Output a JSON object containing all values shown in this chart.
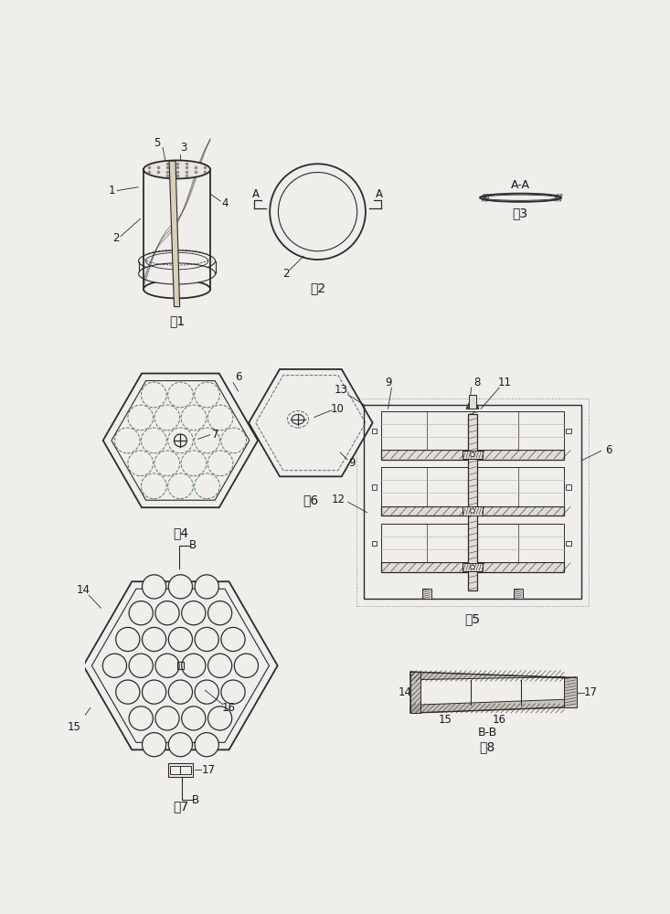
{
  "bg_color": "#f0eeeb",
  "line_color": "#2a2a2a",
  "fig1_label": "图1",
  "fig2_label": "图2",
  "fig3_label": "图3",
  "fig4_label": "图4",
  "fig5_label": "图5",
  "fig6_label": "图6",
  "fig7_label": "图7",
  "fig8_label": "图8",
  "font_size_label": 10,
  "font_size_num": 8.5
}
